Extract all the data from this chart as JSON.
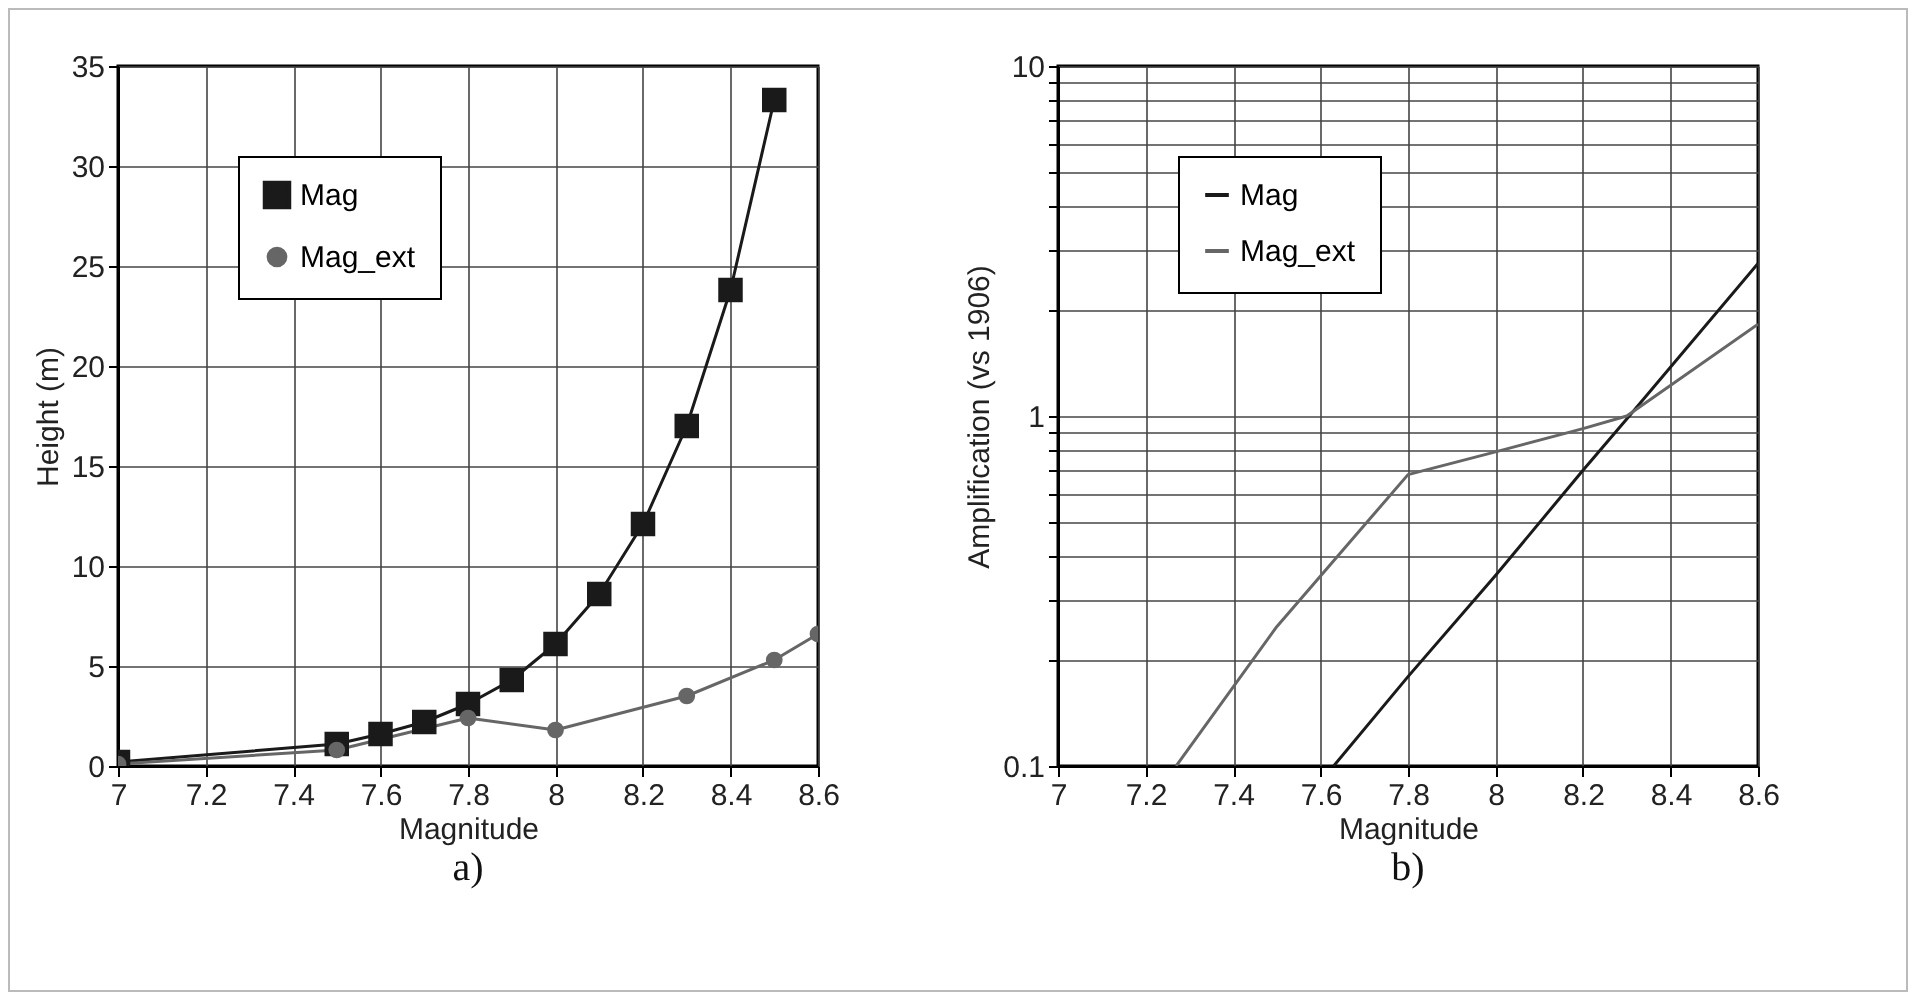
{
  "chart_data": [
    {
      "type": "line",
      "annotations": [
        "a)"
      ],
      "xlabel": "Magnitude",
      "ylabel": "Height (m)",
      "xlim": [
        7,
        8.6
      ],
      "xticks": [
        7,
        7.2,
        7.4,
        7.6,
        7.8,
        8,
        8.2,
        8.4,
        8.6
      ],
      "ylim": [
        0,
        35
      ],
      "yticks": [
        0,
        5,
        10,
        15,
        20,
        25,
        30,
        35
      ],
      "grid": true,
      "legend": "top left",
      "line_style": "solid",
      "series": [
        {
          "name": "Mag",
          "color": "#1a1a1a",
          "marker": "square",
          "x": [
            7,
            7.5,
            7.6,
            7.7,
            7.8,
            7.9,
            8.0,
            8.1,
            8.2,
            8.3,
            8.4,
            8.5
          ],
          "values": [
            0.2,
            1.1,
            1.6,
            2.2,
            3.1,
            4.3,
            6.1,
            8.6,
            12.1,
            17.0,
            23.8,
            33.3
          ]
        },
        {
          "name": "Mag_ext",
          "color": "#666666",
          "marker": "circle",
          "x": [
            7,
            7.5,
            7.8,
            8.0,
            8.3,
            8.5,
            8.6
          ],
          "values": [
            0.1,
            0.8,
            2.4,
            1.8,
            3.5,
            5.3,
            6.6
          ]
        }
      ]
    },
    {
      "type": "line",
      "annotations": [
        "b)"
      ],
      "xlabel": "Magnitude",
      "ylabel": "Amplification (vs 1906)",
      "xlim": [
        7,
        8.6
      ],
      "xticks": [
        7,
        7.2,
        7.4,
        7.6,
        7.8,
        8,
        8.2,
        8.4,
        8.6
      ],
      "ylim": [
        0.1,
        10
      ],
      "log": "y",
      "yticks": [
        0.1,
        {
          "value": 0.2,
          "label": null
        },
        {
          "value": 0.3,
          "label": null
        },
        {
          "value": 0.4,
          "label": null
        },
        {
          "value": 0.5,
          "label": null
        },
        {
          "value": 0.6,
          "label": null
        },
        {
          "value": 0.7,
          "label": null
        },
        {
          "value": 0.8,
          "label": null
        },
        {
          "value": 0.9,
          "label": null
        },
        1,
        {
          "value": 2,
          "label": null
        },
        {
          "value": 3,
          "label": null
        },
        {
          "value": 4,
          "label": null
        },
        {
          "value": 5,
          "label": null
        },
        {
          "value": 6,
          "label": null
        },
        {
          "value": 7,
          "label": null
        },
        {
          "value": 8,
          "label": null
        },
        {
          "value": 9,
          "label": null
        },
        10
      ],
      "grid": true,
      "legend": "top left",
      "marker": "none",
      "line_style": "solid",
      "series": [
        {
          "name": "Mag",
          "color": "#1a1a1a",
          "x": [
            7.63,
            7.8,
            8.0,
            8.2,
            8.3,
            8.6
          ],
          "values": [
            0.1,
            0.18,
            0.35,
            0.7,
            0.98,
            2.73
          ]
        },
        {
          "name": "Mag_ext",
          "color": "#666666",
          "x": [
            7.27,
            7.5,
            7.8,
            8.0,
            8.2,
            8.3,
            8.6
          ],
          "values": [
            0.1,
            0.25,
            0.68,
            0.79,
            0.92,
            1.0,
            1.83
          ]
        }
      ]
    }
  ]
}
